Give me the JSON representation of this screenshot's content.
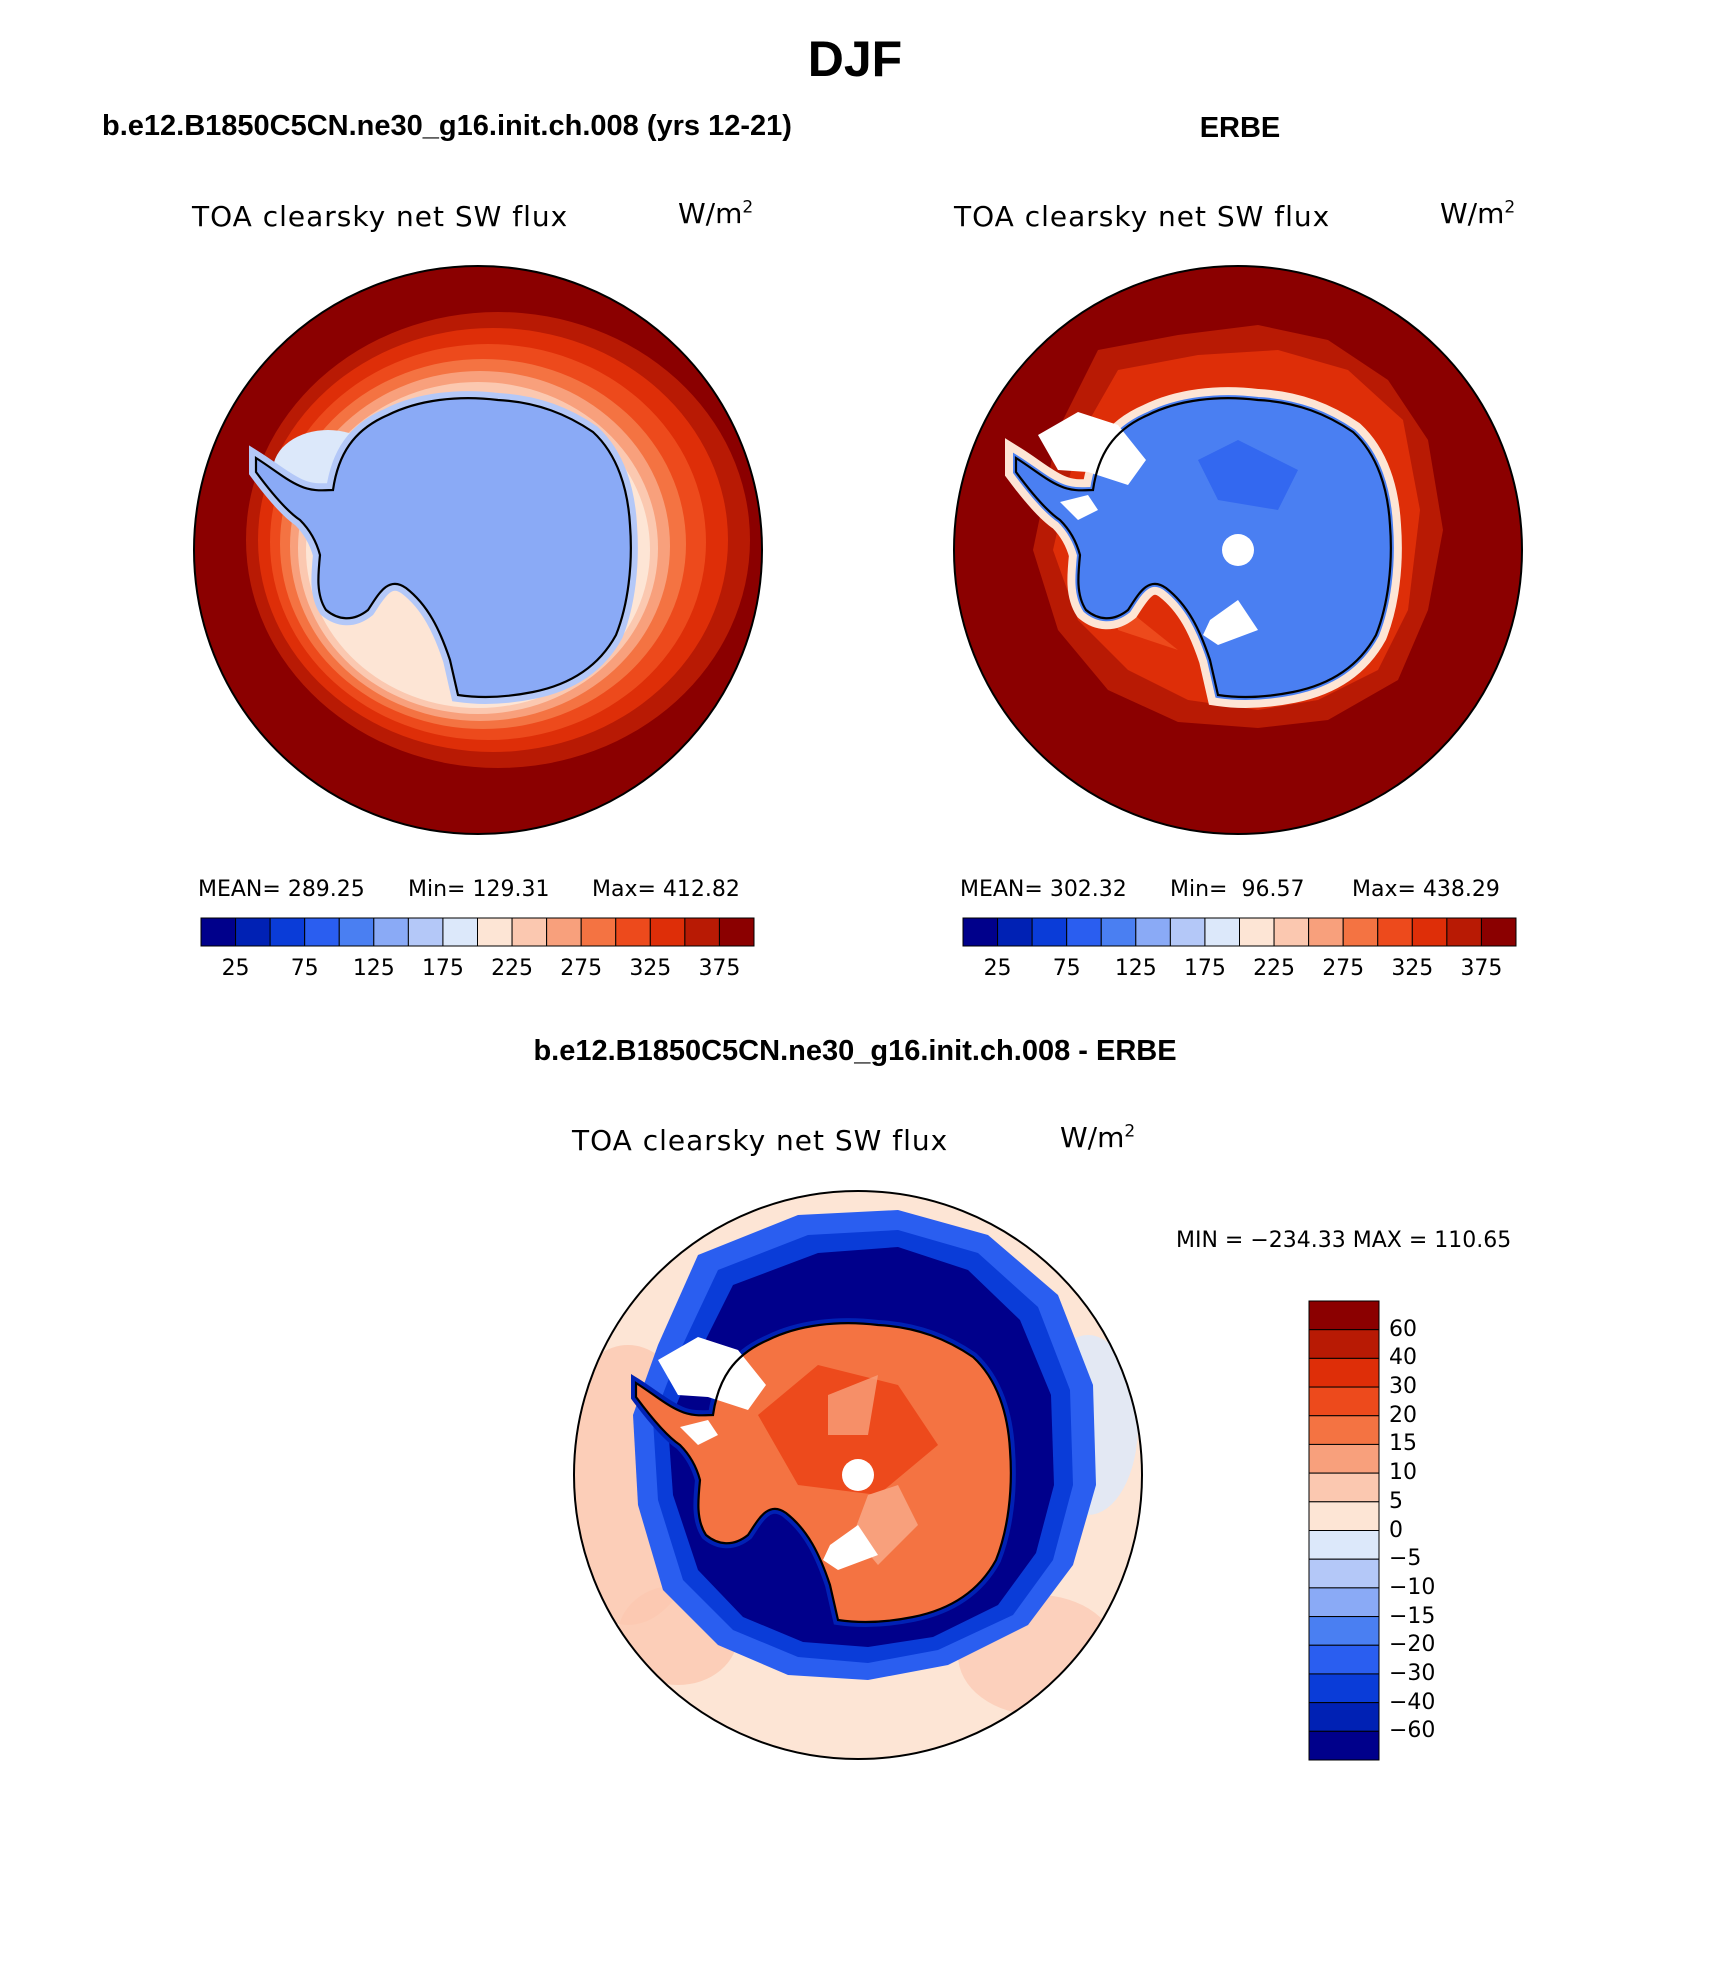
{
  "main_title": "DJF",
  "panels": {
    "left": {
      "header": "b.e12.B1850C5CN.ne30_g16.init.ch.008 (yrs 12-21)",
      "title": "TOA clearsky net SW flux",
      "units": "W/m",
      "units_sup": "2",
      "mean_label": "MEAN= 289.25",
      "min_label": "Min= 129.31",
      "max_label": "Max= 412.82"
    },
    "right": {
      "header": "ERBE",
      "title": "TOA clearsky net SW flux",
      "units": "W/m",
      "units_sup": "2",
      "mean_label": "MEAN= 302.32",
      "min_label": "Min=  96.57",
      "max_label": "Max= 438.29"
    },
    "diff": {
      "header": "b.e12.B1850C5CN.ne30_g16.init.ch.008 - ERBE",
      "title": "TOA clearsky net SW flux",
      "units": "W/m",
      "units_sup": "2",
      "minmax_label": "MIN = −234.33 MAX = 110.65"
    }
  },
  "colorbar_field": {
    "tick_labels": [
      "25",
      "75",
      "125",
      "175",
      "225",
      "275",
      "325",
      "375"
    ],
    "colors": [
      "#00008b",
      "#0021b4",
      "#0a3cd8",
      "#2a5ef0",
      "#4a7ff2",
      "#8aaaf6",
      "#b4c8f8",
      "#dce8fa",
      "#fde5d5",
      "#fbc8b0",
      "#f8a07c",
      "#f47342",
      "#ed4a1c",
      "#de2e08",
      "#b81a04",
      "#8b0000"
    ]
  },
  "colorbar_diff": {
    "tick_labels": [
      "60",
      "40",
      "30",
      "20",
      "15",
      "10",
      "5",
      "0",
      "−5",
      "−10",
      "−15",
      "−20",
      "−30",
      "−40",
      "−60"
    ],
    "colors": [
      "#8b0000",
      "#b81a04",
      "#de2e08",
      "#ed4a1c",
      "#f47342",
      "#f8a07c",
      "#fbc8b0",
      "#fde5d5",
      "#dce8fa",
      "#b4c8f8",
      "#8aaaf6",
      "#4a7ff2",
      "#2a5ef0",
      "#0a3cd8",
      "#0021b4",
      "#00008b"
    ]
  }
}
